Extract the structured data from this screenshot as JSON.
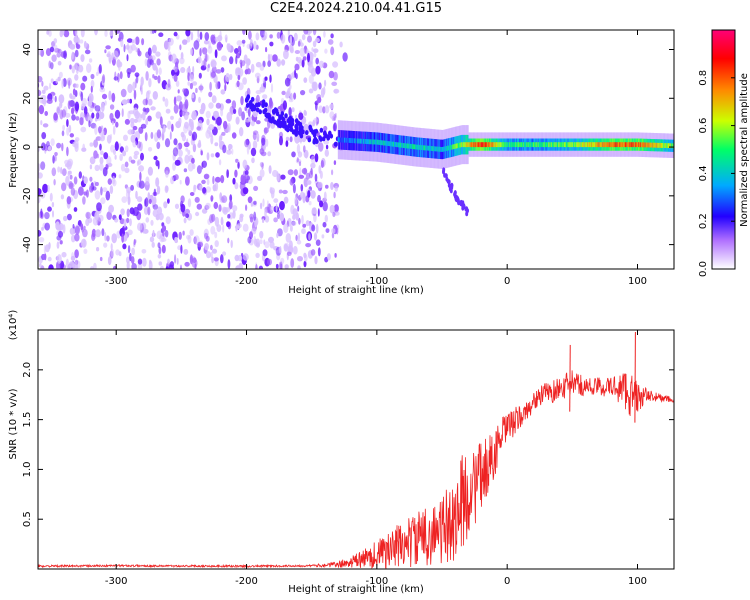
{
  "title": "C2E4.2024.210.04.41.G15",
  "colors": {
    "snr_line": "#ee2222",
    "colormap": [
      "#ffffff",
      "#8800ff",
      "#2200ff",
      "#00aaff",
      "#00ff66",
      "#ccff00",
      "#ff8800",
      "#ff0000",
      "#ff0077"
    ]
  },
  "chart_data": [
    {
      "type": "heatmap",
      "title": "C2E4.2024.210.04.41.G15",
      "xlabel": "Height of straight line (km)",
      "ylabel": "Frequency (Hz)",
      "xlim": [
        -360,
        128
      ],
      "ylim": [
        -50,
        48
      ],
      "x_ticks": [
        -300,
        -200,
        -100,
        0,
        100
      ],
      "x_tick_labels": [
        "-300",
        "-200",
        "-100",
        "0",
        "100"
      ],
      "y_ticks": [
        -40,
        -20,
        0,
        20,
        40
      ],
      "y_tick_labels": [
        "-40",
        "-20",
        "0",
        "20",
        "40"
      ],
      "colorbar": {
        "label": "Normalized spectral amplitude",
        "range": [
          0.0,
          1.0
        ],
        "ticks": [
          0.0,
          0.2,
          0.4,
          0.6,
          0.8
        ],
        "tick_labels": [
          "0.0",
          "0.2",
          "0.4",
          "0.6",
          "0.8"
        ]
      },
      "regions": [
        {
          "description": "broadband noise",
          "x_range": [
            -360,
            -130
          ],
          "freq_range": [
            -50,
            48
          ],
          "amplitude": 0.15
        },
        {
          "description": "converging signal track",
          "x": [
            -200,
            -170,
            -150,
            -130
          ],
          "freq": [
            20,
            10,
            5,
            3
          ],
          "amplitude": 0.2
        },
        {
          "description": "signal track",
          "x": [
            -130,
            -100,
            -70,
            -50,
            -35,
            -20,
            0,
            20,
            50,
            80,
            100,
            128
          ],
          "freq": [
            3,
            2,
            0,
            -1,
            1,
            1,
            1,
            1,
            1,
            1,
            1,
            0.5
          ],
          "amplitude": [
            0.3,
            0.4,
            0.45,
            0.4,
            0.6,
            0.9,
            0.5,
            0.5,
            0.55,
            0.8,
            0.8,
            0.55
          ]
        },
        {
          "description": "descending tail",
          "x": [
            -50,
            -40,
            -30
          ],
          "freq": [
            -8,
            -20,
            -27
          ],
          "amplitude": 0.2
        }
      ],
      "grid": false
    },
    {
      "type": "line",
      "xlabel": "Height of straight line (km)",
      "ylabel": "SNR (10 * v/v)",
      "y_scale_label": "(x10⁴)",
      "xlim": [
        -360,
        128
      ],
      "ylim": [
        0,
        2.4
      ],
      "x_ticks": [
        -300,
        -200,
        -100,
        0,
        100
      ],
      "x_tick_labels": [
        "-300",
        "-200",
        "-100",
        "0",
        "100"
      ],
      "y_ticks": [
        0.5,
        1.0,
        1.5,
        2.0
      ],
      "y_tick_labels": [
        "0.5",
        "1.0",
        "1.5",
        "2.0"
      ],
      "series": [
        {
          "x": [
            -360,
            -300,
            -200,
            -150,
            -130,
            -120,
            -110,
            -100,
            -90,
            -80,
            -70,
            -60,
            -50,
            -40,
            -35,
            -30,
            -25,
            -20,
            -15,
            -10,
            -5,
            0,
            5,
            10,
            15,
            20,
            25,
            30,
            35,
            40,
            45,
            50,
            60,
            70,
            80,
            90,
            95,
            100,
            110,
            120,
            128
          ],
          "y": [
            0.03,
            0.035,
            0.03,
            0.035,
            0.05,
            0.08,
            0.12,
            0.18,
            0.22,
            0.3,
            0.35,
            0.4,
            0.45,
            0.6,
            0.75,
            0.85,
            0.9,
            1.0,
            1.1,
            1.2,
            1.35,
            1.45,
            1.5,
            1.55,
            1.6,
            1.7,
            1.75,
            1.8,
            1.8,
            1.85,
            1.85,
            1.9,
            1.85,
            1.85,
            1.85,
            1.85,
            1.8,
            1.75,
            1.75,
            1.72,
            1.7
          ],
          "noise": [
            0.01,
            0.01,
            0.01,
            0.01,
            0.03,
            0.06,
            0.1,
            0.15,
            0.2,
            0.25,
            0.28,
            0.3,
            0.35,
            0.45,
            0.5,
            0.45,
            0.4,
            0.35,
            0.3,
            0.25,
            0.2,
            0.15,
            0.15,
            0.12,
            0.1,
            0.1,
            0.1,
            0.1,
            0.12,
            0.1,
            0.15,
            0.12,
            0.1,
            0.1,
            0.1,
            0.2,
            0.25,
            0.15,
            0.05,
            0.04,
            0.03
          ]
        }
      ],
      "peaks": [
        {
          "x": 48,
          "y": 2.25
        },
        {
          "x": 98,
          "y": 2.38
        }
      ],
      "grid": false
    }
  ]
}
